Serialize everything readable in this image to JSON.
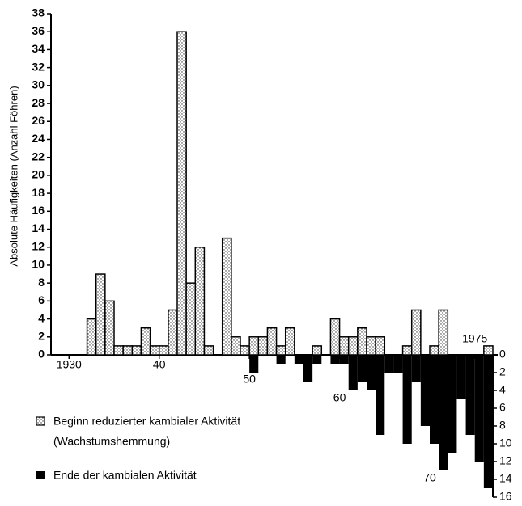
{
  "chart_data": {
    "type": "bar",
    "y_label": "Absolute Häufigkeiten (Anzahl Föhren)",
    "x": [
      1932,
      1933,
      1934,
      1935,
      1936,
      1937,
      1938,
      1939,
      1940,
      1941,
      1942,
      1943,
      1944,
      1945,
      1946,
      1947,
      1948,
      1949,
      1950,
      1951,
      1952,
      1953,
      1954,
      1955,
      1956,
      1957,
      1958,
      1959,
      1960,
      1961,
      1962,
      1963,
      1964,
      1965,
      1966,
      1967,
      1968,
      1969,
      1970,
      1971,
      1972,
      1973,
      1974,
      1975,
      1976
    ],
    "xlim": [
      1927.5,
      1976.5
    ],
    "xticks": [
      {
        "value": 1930,
        "label": "1930"
      },
      {
        "value": 1940,
        "label": "40"
      },
      {
        "value": 1950,
        "label": "50"
      },
      {
        "value": 1960,
        "label": "60"
      },
      {
        "value": 1970,
        "label": "70"
      },
      1975
    ],
    "ylim": [
      0,
      38
    ],
    "yticks": [
      0,
      2,
      4,
      6,
      8,
      10,
      12,
      14,
      16,
      18,
      20,
      22,
      24,
      26,
      28,
      30,
      32,
      34,
      36,
      38
    ],
    "y2lim": [
      0,
      16
    ],
    "y2ticks": [
      0,
      2,
      4,
      6,
      8,
      10,
      12,
      14,
      16
    ],
    "series": [
      {
        "name": "Beginn reduzierter kambialer Aktivität",
        "subname": "(Wachstumshemmung)",
        "color": "#ffffff",
        "values": [
          4,
          9,
          6,
          1,
          1,
          1,
          3,
          1,
          1,
          5,
          36,
          8,
          12,
          1,
          0,
          13,
          2,
          1,
          2,
          2,
          3,
          1,
          3,
          0,
          0,
          1,
          0,
          4,
          2,
          2,
          3,
          2,
          2,
          0,
          0,
          1,
          5,
          0,
          1,
          5,
          0,
          0,
          0,
          0,
          1
        ]
      },
      {
        "name": "Ende der kambialen Aktivität",
        "color": "#000000",
        "axis": "y2",
        "values": [
          0,
          0,
          0,
          0,
          0,
          0,
          0,
          0,
          0,
          0,
          0,
          0,
          0,
          0,
          0,
          0,
          0,
          0,
          2,
          0,
          0,
          1,
          0,
          1,
          3,
          1,
          0,
          1,
          1,
          4,
          3,
          4,
          9,
          2,
          2,
          10,
          3,
          8,
          10,
          13,
          11,
          5,
          9,
          12,
          15
        ]
      }
    ]
  }
}
